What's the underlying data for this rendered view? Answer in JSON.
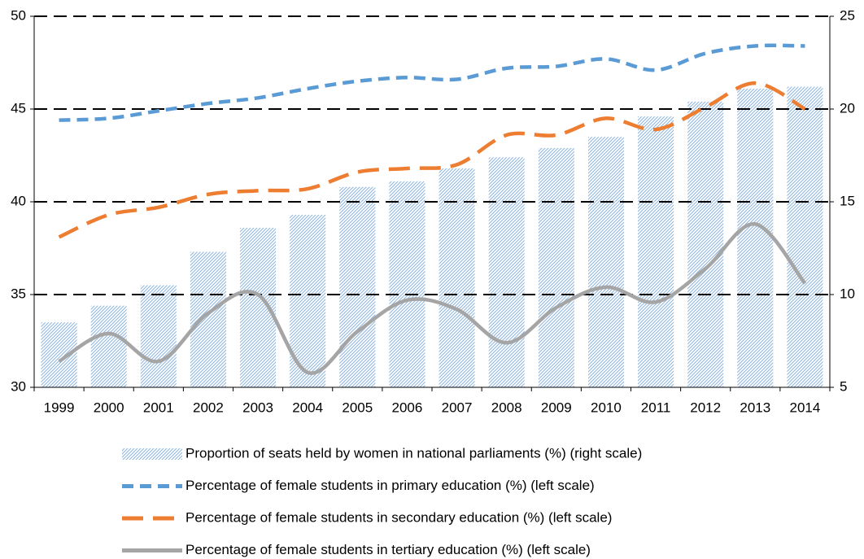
{
  "chart_data": {
    "type": "bar-line",
    "categories": [
      "1999",
      "2000",
      "2001",
      "2002",
      "2003",
      "2004",
      "2005",
      "2006",
      "2007",
      "2008",
      "2009",
      "2010",
      "2011",
      "2012",
      "2013",
      "2014"
    ],
    "ylim": [
      30,
      50
    ],
    "yticks": [
      30,
      35,
      40,
      45,
      50
    ],
    "y2lim": [
      5,
      25
    ],
    "y2ticks": [
      5,
      10,
      15,
      20,
      25
    ],
    "grid": true,
    "legend": "bottom",
    "series": [
      {
        "name": "Proportion of seats held by women in national parliaments (%) (right scale)",
        "type": "bar",
        "axis": "y2",
        "color": "#8db4dc",
        "values": [
          8.5,
          9.4,
          10.5,
          12.3,
          13.6,
          14.3,
          15.8,
          16.1,
          16.8,
          17.4,
          17.9,
          18.5,
          19.6,
          20.4,
          21.1,
          21.2
        ]
      },
      {
        "name": "Percentage of female students in primary education (%) (left scale)",
        "type": "line",
        "color": "#5b9bd5",
        "dash": "14,8",
        "values": [
          44.4,
          44.5,
          44.9,
          45.3,
          45.6,
          46.1,
          46.5,
          46.7,
          46.6,
          47.2,
          47.3,
          47.7,
          47.1,
          48.0,
          48.4,
          48.4
        ]
      },
      {
        "name": "Percentage of female students in secondary education (%) (left scale)",
        "type": "line",
        "color": "#ed7d31",
        "dash": "26,12",
        "values": [
          38.1,
          39.3,
          39.7,
          40.4,
          40.6,
          40.7,
          41.6,
          41.8,
          42.0,
          43.6,
          43.6,
          44.5,
          43.9,
          45.1,
          46.4,
          45.0
        ]
      },
      {
        "name": "Percentage of female students in tertiary education (%) (left scale)",
        "type": "line",
        "color": "#a5a5a5",
        "dash": "none",
        "values": [
          31.4,
          32.9,
          31.4,
          34.0,
          35.0,
          30.8,
          33.0,
          34.7,
          34.2,
          32.4,
          34.3,
          35.4,
          34.6,
          36.4,
          38.8,
          35.6
        ]
      }
    ]
  }
}
